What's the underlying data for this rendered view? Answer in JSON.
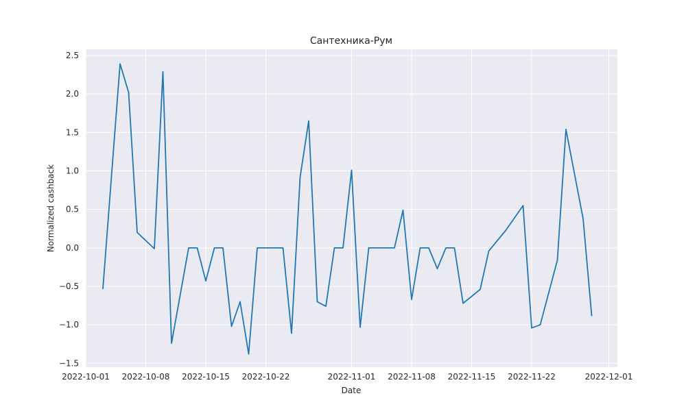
{
  "chart_data": {
    "type": "line",
    "title": "Сантехника-Рум",
    "xlabel": "Date",
    "ylabel": "Normalized cashback",
    "xlim": [
      "2022-10-01",
      "2022-12-02"
    ],
    "ylim": [
      -1.55,
      2.58
    ],
    "grid": true,
    "x_ticks": [
      "2022-10-01",
      "2022-10-08",
      "2022-10-15",
      "2022-10-22",
      "2022-11-01",
      "2022-11-08",
      "2022-11-15",
      "2022-11-22",
      "2022-12-01"
    ],
    "y_ticks": [
      -1.5,
      -1.0,
      -0.5,
      0.0,
      0.5,
      1.0,
      1.5,
      2.0,
      2.5
    ],
    "y_tick_labels": [
      "−1.5",
      "−1.0",
      "−0.5",
      "0.0",
      "0.5",
      "1.0",
      "1.5",
      "2.0",
      "2.5"
    ],
    "colors": {
      "line": "#1f77b4",
      "plot_bg": "#eaeaf2",
      "grid": "#ffffff"
    },
    "series": [
      {
        "x": [
          "2022-10-03",
          "2022-10-05",
          "2022-10-06",
          "2022-10-07",
          "2022-10-09",
          "2022-10-10",
          "2022-10-11",
          "2022-10-13",
          "2022-10-14",
          "2022-10-15",
          "2022-10-16",
          "2022-10-17",
          "2022-10-18",
          "2022-10-19",
          "2022-10-20",
          "2022-10-21",
          "2022-10-22",
          "2022-10-23",
          "2022-10-24",
          "2022-10-25",
          "2022-10-26",
          "2022-10-27",
          "2022-10-28",
          "2022-10-29",
          "2022-10-30",
          "2022-10-31",
          "2022-11-01",
          "2022-11-02",
          "2022-11-03",
          "2022-11-04",
          "2022-11-05",
          "2022-11-06",
          "2022-11-07",
          "2022-11-08",
          "2022-11-09",
          "2022-11-10",
          "2022-11-11",
          "2022-11-12",
          "2022-11-13",
          "2022-11-14",
          "2022-11-16",
          "2022-11-17",
          "2022-11-19",
          "2022-11-21",
          "2022-11-22",
          "2022-11-23",
          "2022-11-25",
          "2022-11-26",
          "2022-11-28",
          "2022-11-29"
        ],
        "values": [
          -0.53,
          2.39,
          2.02,
          0.2,
          -0.01,
          2.29,
          -1.24,
          0.0,
          0.0,
          -0.43,
          0.0,
          0.0,
          -1.02,
          -0.7,
          -1.38,
          0.0,
          0.0,
          0.0,
          0.0,
          -1.11,
          0.92,
          1.65,
          -0.7,
          -0.76,
          0.0,
          0.0,
          1.01,
          -1.03,
          0.0,
          0.0,
          0.0,
          0.0,
          0.49,
          -0.67,
          0.0,
          0.0,
          -0.27,
          0.0,
          0.0,
          -0.72,
          -0.54,
          -0.04,
          0.23,
          0.55,
          -1.04,
          -1.0,
          -0.16,
          1.54,
          0.38,
          -0.88
        ]
      }
    ]
  }
}
